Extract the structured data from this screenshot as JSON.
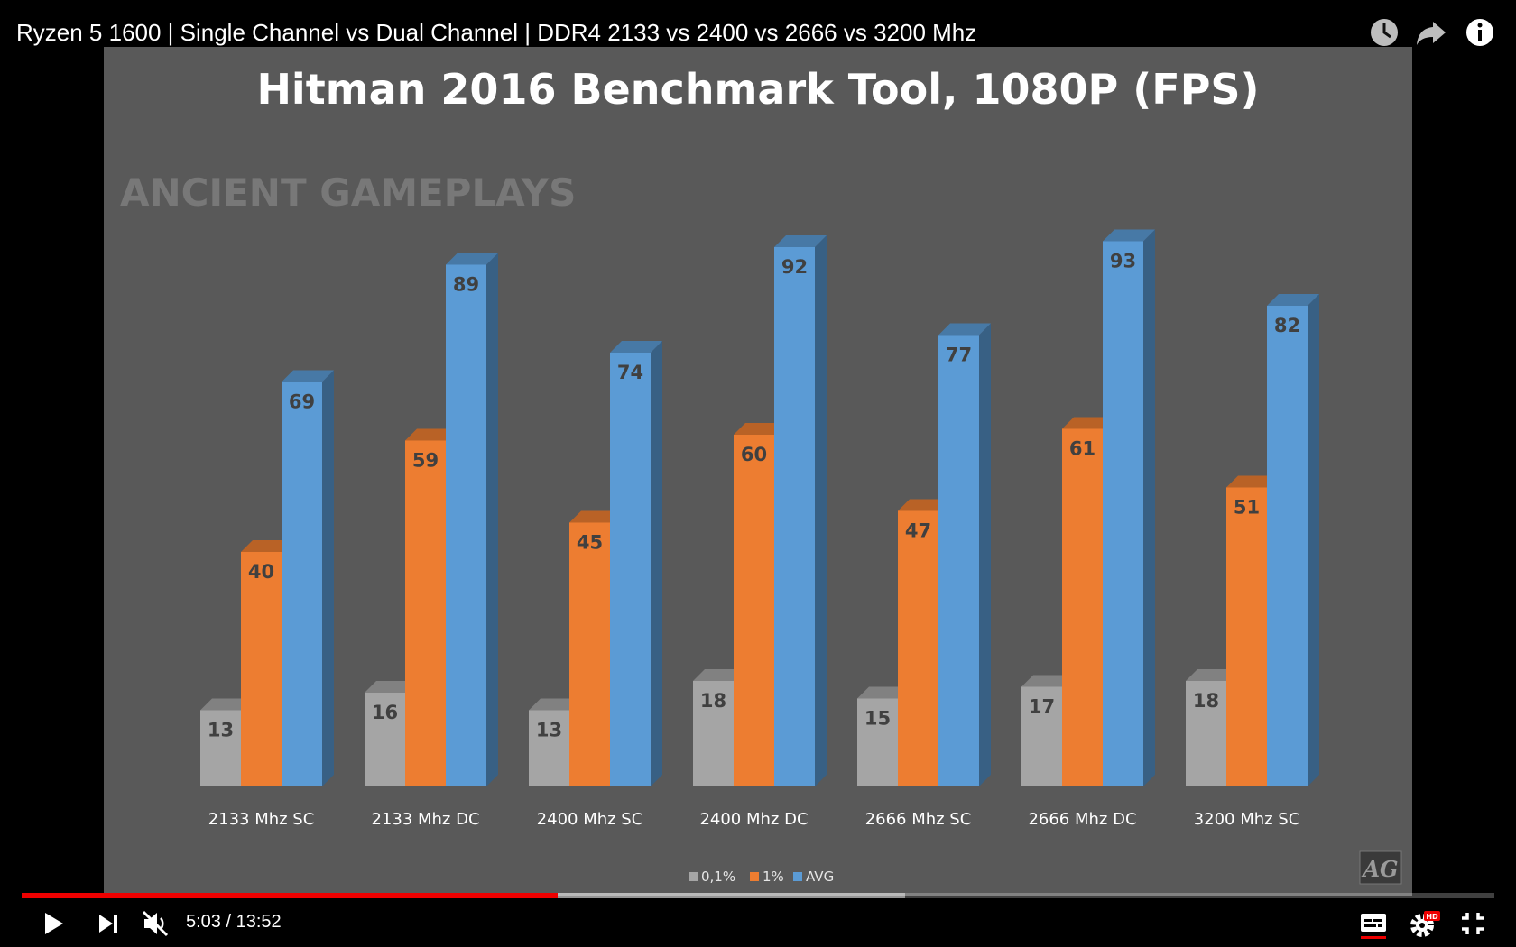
{
  "video": {
    "title": "Ryzen 5 1600 | Single Channel vs Dual Channel | DDR4 2133 vs 2400 vs 2666 vs 3200 Mhz",
    "current_time": "5:03",
    "duration": "13:52",
    "time_text": "5:03 / 13:52",
    "progress_fraction": 0.3637,
    "buffered_fraction": 0.6
  },
  "top_icons": [
    "clock-icon",
    "share-icon",
    "info-icon"
  ],
  "controls": [
    "play-icon",
    "next-icon",
    "muted-icon",
    "subtitles-icon",
    "settings-icon",
    "exit-fullscreen-icon"
  ],
  "settings_badge": "HD",
  "watermark": {
    "text": "ANCIENT GAMEPLAYS",
    "logo": "AG"
  },
  "colors": {
    "pct01": "#a5a5a5",
    "pct1": "#ed7d31",
    "avg": "#5b9bd5",
    "slide_bg": "#595959",
    "progress": "#ee0000"
  },
  "chart_data": {
    "type": "bar",
    "title": "Hitman 2016 Benchmark Tool, 1080P (FPS)",
    "categories": [
      "2133 Mhz SC",
      "2133 Mhz DC",
      "2400 Mhz SC",
      "2400 Mhz DC",
      "2666 Mhz SC",
      "2666 Mhz DC",
      "3200 Mhz SC"
    ],
    "series": [
      {
        "name": "0,1%",
        "values": [
          13,
          16,
          13,
          18,
          15,
          17,
          18
        ]
      },
      {
        "name": "1%",
        "values": [
          40,
          59,
          45,
          60,
          47,
          61,
          51
        ]
      },
      {
        "name": "AVG",
        "values": [
          69,
          89,
          74,
          92,
          77,
          93,
          82
        ]
      }
    ],
    "xlabel": "",
    "ylabel": "",
    "ylim": [
      0,
      100
    ],
    "grid": false,
    "legend": "bottom-center"
  }
}
